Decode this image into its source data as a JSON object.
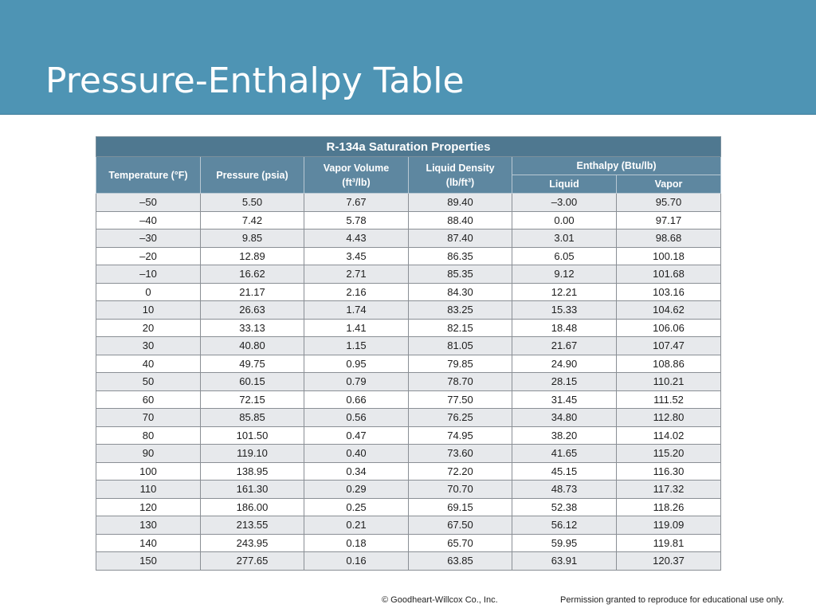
{
  "slide": {
    "title": "Pressure-Enthalpy Table"
  },
  "table": {
    "caption": "R-134a Saturation Properties",
    "headers": {
      "temperature": "Temperature (°F)",
      "pressure": "Pressure (psia)",
      "vapor_volume_line1": "Vapor Volume",
      "vapor_volume_line2": "(ft³/lb)",
      "liquid_density_line1": "Liquid Density",
      "liquid_density_line2": "(lb/ft³)",
      "enthalpy": "Enthalpy (Btu/lb)",
      "enthalpy_liquid": "Liquid",
      "enthalpy_vapor": "Vapor"
    },
    "rows": [
      [
        "–50",
        "5.50",
        "7.67",
        "89.40",
        "–3.00",
        "95.70"
      ],
      [
        "–40",
        "7.42",
        "5.78",
        "88.40",
        "0.00",
        "97.17"
      ],
      [
        "–30",
        "9.85",
        "4.43",
        "87.40",
        "3.01",
        "98.68"
      ],
      [
        "–20",
        "12.89",
        "3.45",
        "86.35",
        "6.05",
        "100.18"
      ],
      [
        "–10",
        "16.62",
        "2.71",
        "85.35",
        "9.12",
        "101.68"
      ],
      [
        "0",
        "21.17",
        "2.16",
        "84.30",
        "12.21",
        "103.16"
      ],
      [
        "10",
        "26.63",
        "1.74",
        "83.25",
        "15.33",
        "104.62"
      ],
      [
        "20",
        "33.13",
        "1.41",
        "82.15",
        "18.48",
        "106.06"
      ],
      [
        "30",
        "40.80",
        "1.15",
        "81.05",
        "21.67",
        "107.47"
      ],
      [
        "40",
        "49.75",
        "0.95",
        "79.85",
        "24.90",
        "108.86"
      ],
      [
        "50",
        "60.15",
        "0.79",
        "78.70",
        "28.15",
        "110.21"
      ],
      [
        "60",
        "72.15",
        "0.66",
        "77.50",
        "31.45",
        "111.52"
      ],
      [
        "70",
        "85.85",
        "0.56",
        "76.25",
        "34.80",
        "112.80"
      ],
      [
        "80",
        "101.50",
        "0.47",
        "74.95",
        "38.20",
        "114.02"
      ],
      [
        "90",
        "119.10",
        "0.40",
        "73.60",
        "41.65",
        "115.20"
      ],
      [
        "100",
        "138.95",
        "0.34",
        "72.20",
        "45.15",
        "116.30"
      ],
      [
        "110",
        "161.30",
        "0.29",
        "70.70",
        "48.73",
        "117.32"
      ],
      [
        "120",
        "186.00",
        "0.25",
        "69.15",
        "52.38",
        "118.26"
      ],
      [
        "130",
        "213.55",
        "0.21",
        "67.50",
        "56.12",
        "119.09"
      ],
      [
        "140",
        "243.95",
        "0.18",
        "65.70",
        "59.95",
        "119.81"
      ],
      [
        "150",
        "277.65",
        "0.16",
        "63.85",
        "63.91",
        "120.37"
      ]
    ]
  },
  "footer": {
    "copyright": "© Goodheart-Willcox Co., Inc.",
    "permission": "Permission granted to reproduce for educational use only."
  }
}
